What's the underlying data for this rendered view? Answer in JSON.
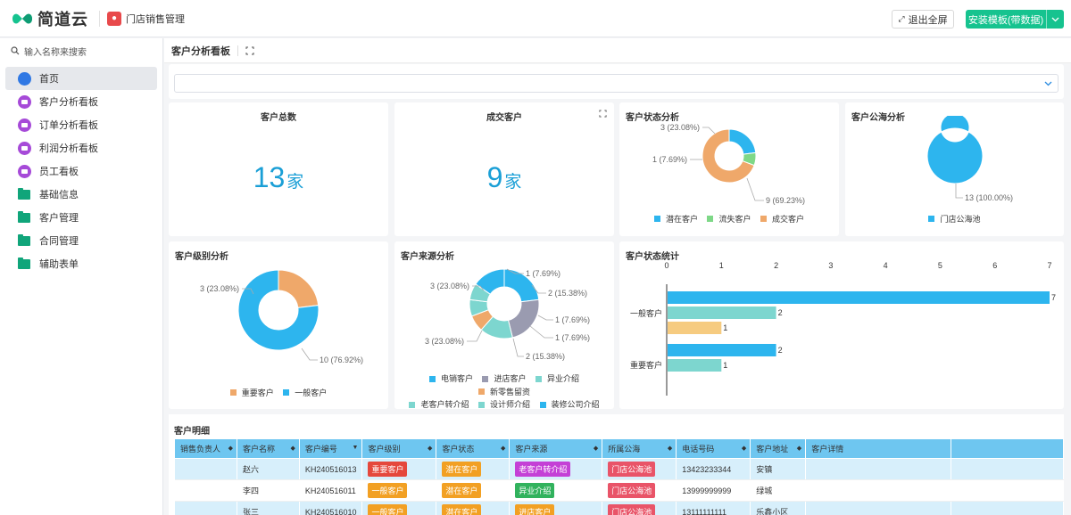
{
  "header": {
    "brand": "简道云",
    "app_name": "门店销售管理",
    "exit_label": "退出全屏",
    "install_label": "安装模板(带数据)"
  },
  "sidebar": {
    "search_placeholder": "输入名称来搜索",
    "items": [
      {
        "label": "首页",
        "icon": "home-icon",
        "active": true
      },
      {
        "label": "客户分析看板",
        "icon": "dashboard-icon"
      },
      {
        "label": "订单分析看板",
        "icon": "dashboard-icon"
      },
      {
        "label": "利润分析看板",
        "icon": "dashboard-icon"
      },
      {
        "label": "员工看板",
        "icon": "dashboard-icon"
      },
      {
        "label": "基础信息",
        "icon": "folder-icon"
      },
      {
        "label": "客户管理",
        "icon": "folder-icon"
      },
      {
        "label": "合同管理",
        "icon": "folder-icon"
      },
      {
        "label": "辅助表单",
        "icon": "folder-icon"
      }
    ]
  },
  "main": {
    "title": "客户分析看板"
  },
  "kpis": {
    "total": {
      "title": "客户总数",
      "value": "13",
      "unit": "家"
    },
    "deal": {
      "title": "成交客户",
      "value": "9",
      "unit": "家"
    }
  },
  "colors": {
    "accent": "#16c38f",
    "blue": "#2db5ee",
    "green": "#7ed887",
    "orange": "#efa86a",
    "gray": "#9a9bb0",
    "teal": "#7dd6cf",
    "sand": "#f6cb80"
  },
  "chart_data": [
    {
      "type": "pie",
      "title": "客户状态分析",
      "categories": [
        "潜在客户",
        "流失客户",
        "成交客户"
      ],
      "values": [
        3,
        1,
        9
      ],
      "labels": [
        "3 (23.08%)",
        "1 (7.69%)",
        "9 (69.23%)"
      ],
      "colors": [
        "#2db5ee",
        "#7ed887",
        "#efa86a"
      ],
      "legend": "bottom"
    },
    {
      "type": "pie",
      "title": "客户公海分析",
      "categories": [
        "门店公海池"
      ],
      "values": [
        13
      ],
      "labels": [
        "13 (100.00%)"
      ],
      "colors": [
        "#2db5ee"
      ],
      "legend": "bottom"
    },
    {
      "type": "pie",
      "title": "客户级别分析",
      "categories": [
        "重要客户",
        "一般客户"
      ],
      "values": [
        3,
        10
      ],
      "labels": [
        "3 (23.08%)",
        "10 (76.92%)"
      ],
      "colors": [
        "#efa86a",
        "#2db5ee"
      ],
      "legend": "bottom"
    },
    {
      "type": "pie",
      "title": "客户来源分析",
      "categories": [
        "电销客户",
        "进店客户",
        "异业介绍",
        "新零售留资",
        "老客户转介绍",
        "设计师介绍",
        "装修公司介绍"
      ],
      "values": [
        3,
        3,
        2,
        1,
        1,
        1,
        2
      ],
      "labels": [
        "3 (23.08%)",
        "3 (23.08%)",
        "2 (15.38%)",
        "1 (7.69%)",
        "1 (7.69%)",
        "1 (7.69%)",
        "2 (15.38%)"
      ],
      "colors": [
        "#2db5ee",
        "#9a9bb0",
        "#7dd6cf",
        "#efa86a",
        "#7dd6cf",
        "#7dd6cf",
        "#2db5ee"
      ],
      "legend": "bottom"
    },
    {
      "type": "bar",
      "orientation": "horizontal",
      "title": "客户状态统计",
      "categories": [
        "一般客户",
        "重要客户"
      ],
      "series": [
        {
          "values": [
            7,
            2
          ],
          "color": "#2db5ee"
        },
        {
          "values": [
            2,
            1
          ],
          "color": "#7dd6cf"
        },
        {
          "values": [
            1,
            0
          ],
          "color": "#f6cb80"
        }
      ],
      "xticks": [
        "0",
        "1",
        "2",
        "3",
        "4",
        "5",
        "6",
        "7"
      ],
      "xlim": [
        0,
        7
      ]
    }
  ],
  "table": {
    "title": "客户明细",
    "columns": [
      "销售负责人",
      "客户名称",
      "客户编号",
      "客户级别",
      "客户状态",
      "客户来源",
      "所属公海",
      "电话号码",
      "客户地址",
      "客户详情"
    ],
    "rows": [
      {
        "owner": "",
        "name": "赵六",
        "code": "KH240516013",
        "level": "重要客户",
        "status": "潜在客户",
        "source": "老客户转介绍",
        "pool": "门店公海池",
        "phone": "13423233344",
        "address": "安镇",
        "detail": ""
      },
      {
        "owner": "",
        "name": "李四",
        "code": "KH240516011",
        "level": "一般客户",
        "status": "潜在客户",
        "source": "异业介绍",
        "pool": "门店公海池",
        "phone": "13999999999",
        "address": "绿城",
        "detail": ""
      },
      {
        "owner": "",
        "name": "张三",
        "code": "KH240516010",
        "level": "一般客户",
        "status": "潜在客户",
        "source": "进店客户",
        "pool": "门店公海池",
        "phone": "13111111111",
        "address": "乐鑫小区",
        "detail": ""
      }
    ]
  }
}
